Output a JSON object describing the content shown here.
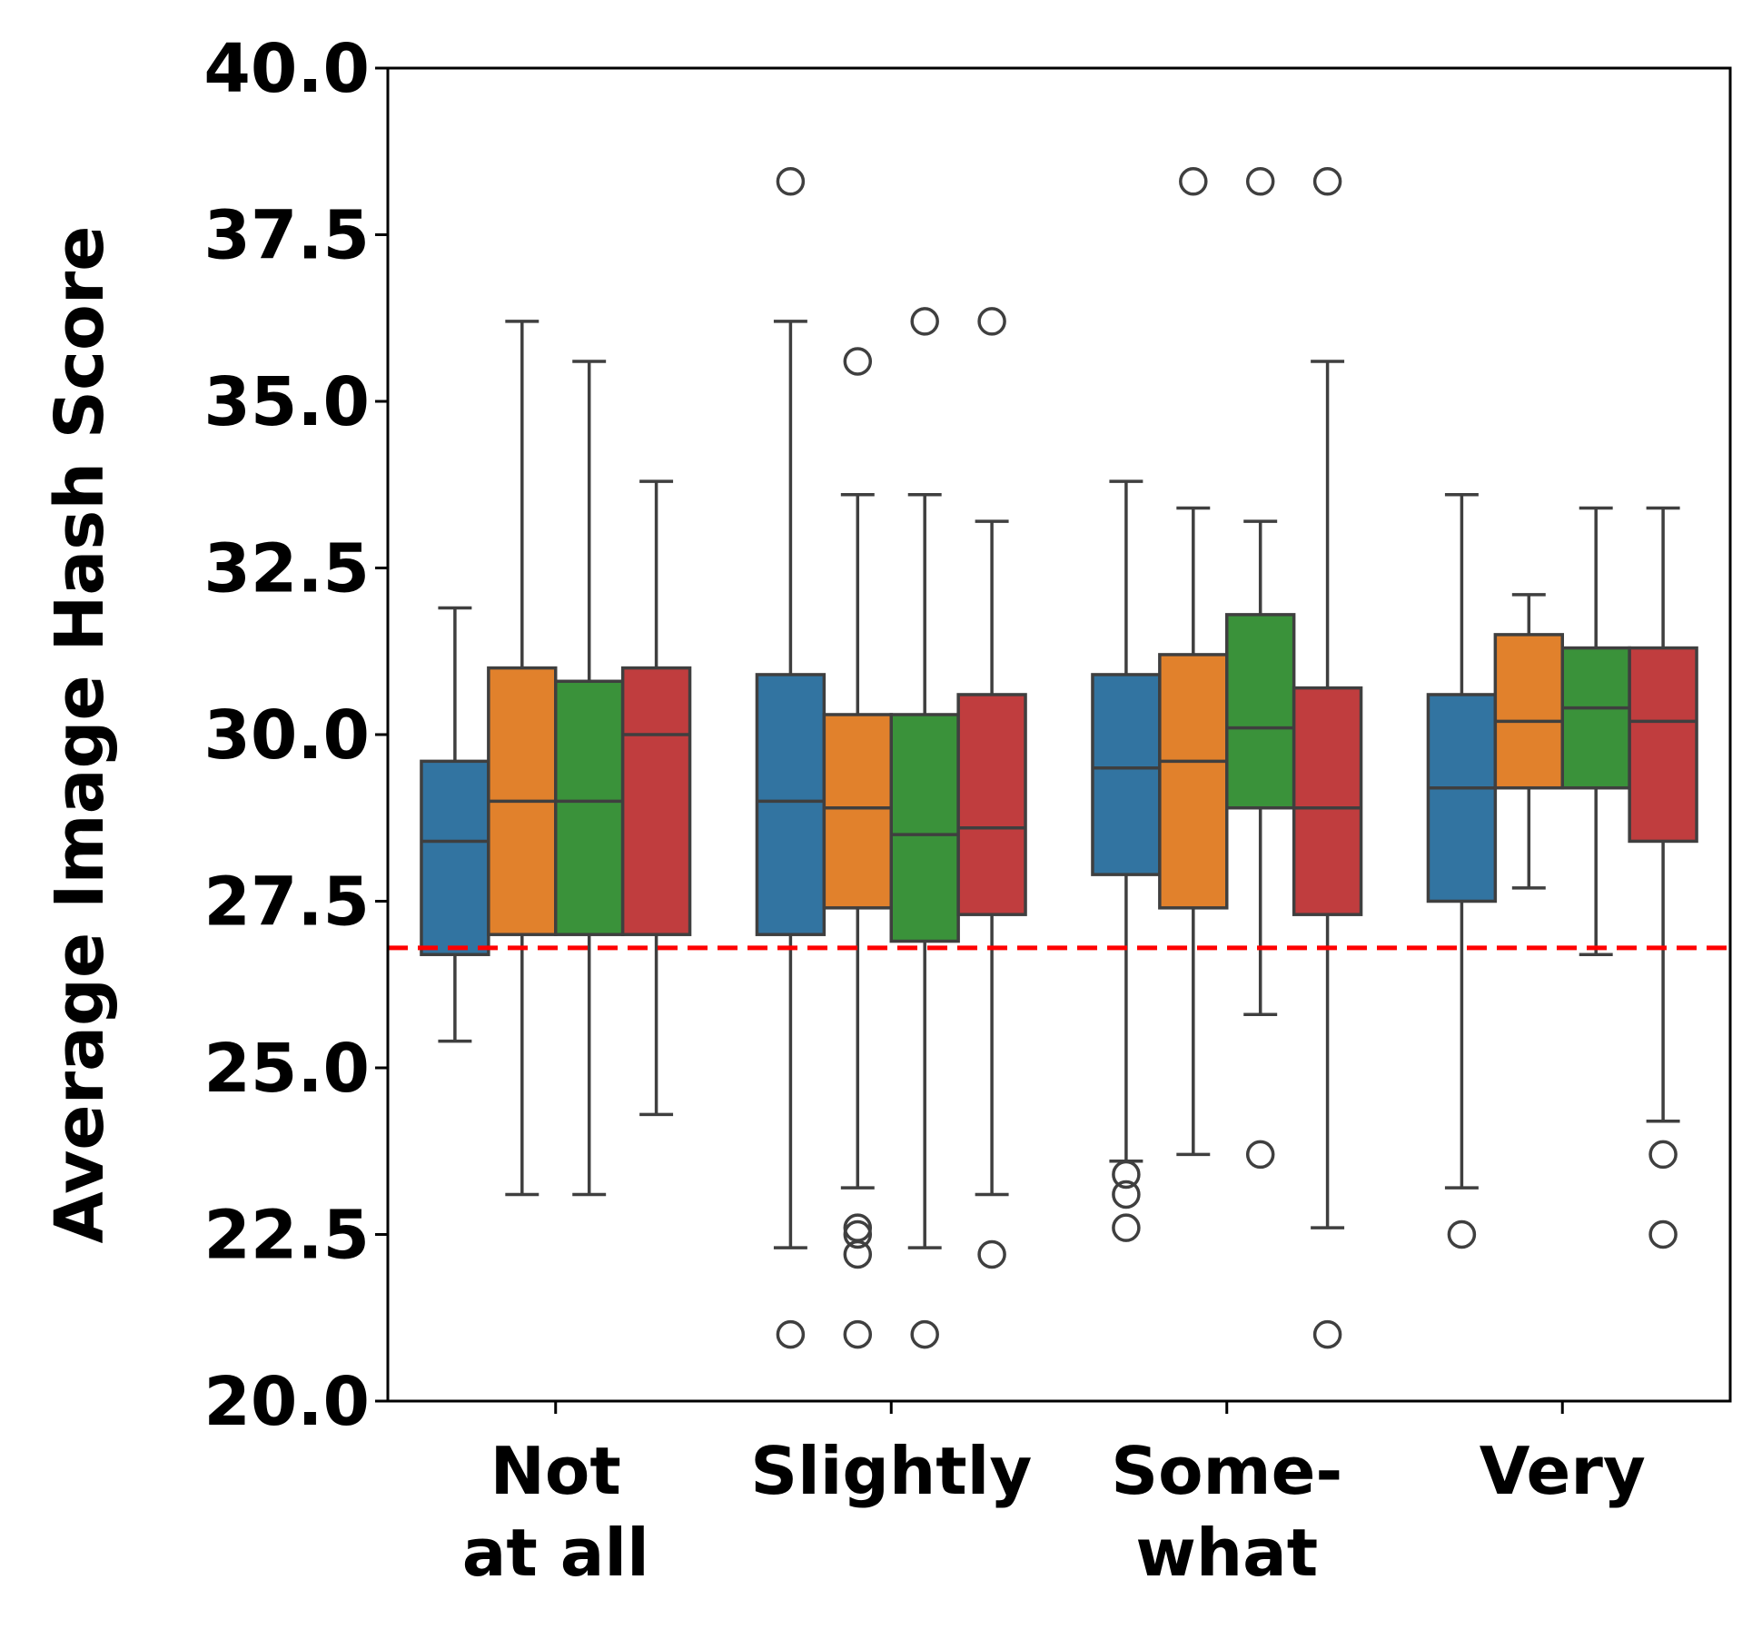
{
  "chart_data": {
    "type": "box",
    "title": "",
    "xlabel": "",
    "ylabel": "Average Image Hash Score",
    "ylim": [
      20.0,
      40.0
    ],
    "yticks": [
      "20.0",
      "22.5",
      "25.0",
      "27.5",
      "30.0",
      "32.5",
      "35.0",
      "37.5",
      "40.0"
    ],
    "categories": [
      [
        "Not",
        "at all"
      ],
      [
        "Slightly"
      ],
      [
        "Some-",
        "what"
      ],
      [
        "Very"
      ]
    ],
    "series_colors": [
      "#3274a1",
      "#e1812c",
      "#3a923a",
      "#c03d3e"
    ],
    "reference_line": {
      "value": 26.8,
      "color": "#ff0000",
      "style": "dashed"
    },
    "groups": [
      [
        {
          "q1": 26.7,
          "median": 28.4,
          "q3": 29.6,
          "whisker_low": 25.4,
          "whisker_high": 31.9,
          "outliers": []
        },
        {
          "q1": 27.0,
          "median": 29.0,
          "q3": 31.0,
          "whisker_low": 23.1,
          "whisker_high": 36.2,
          "outliers": []
        },
        {
          "q1": 27.0,
          "median": 29.0,
          "q3": 30.8,
          "whisker_low": 23.1,
          "whisker_high": 35.6,
          "outliers": []
        },
        {
          "q1": 27.0,
          "median": 30.0,
          "q3": 31.0,
          "whisker_low": 24.3,
          "whisker_high": 33.8,
          "outliers": []
        }
      ],
      [
        {
          "q1": 27.0,
          "median": 29.0,
          "q3": 30.9,
          "whisker_low": 22.3,
          "whisker_high": 36.2,
          "outliers": [
            38.3,
            21.0
          ]
        },
        {
          "q1": 27.4,
          "median": 28.9,
          "q3": 30.3,
          "whisker_low": 23.2,
          "whisker_high": 33.6,
          "outliers": [
            35.6,
            22.6,
            22.5,
            22.2,
            21.0
          ]
        },
        {
          "q1": 26.9,
          "median": 28.5,
          "q3": 30.3,
          "whisker_low": 22.3,
          "whisker_high": 33.6,
          "outliers": [
            36.2,
            21.0
          ]
        },
        {
          "q1": 27.3,
          "median": 28.6,
          "q3": 30.6,
          "whisker_low": 23.1,
          "whisker_high": 33.2,
          "outliers": [
            36.2,
            22.2
          ]
        }
      ],
      [
        {
          "q1": 27.9,
          "median": 29.5,
          "q3": 30.9,
          "whisker_low": 23.6,
          "whisker_high": 33.8,
          "outliers": [
            23.4,
            23.1,
            22.6
          ]
        },
        {
          "q1": 27.4,
          "median": 29.6,
          "q3": 31.2,
          "whisker_low": 23.7,
          "whisker_high": 33.4,
          "outliers": [
            38.3
          ]
        },
        {
          "q1": 28.9,
          "median": 30.1,
          "q3": 31.8,
          "whisker_low": 25.8,
          "whisker_high": 33.2,
          "outliers": [
            38.3,
            23.7
          ]
        },
        {
          "q1": 27.3,
          "median": 28.9,
          "q3": 30.7,
          "whisker_low": 22.6,
          "whisker_high": 35.6,
          "outliers": [
            38.3,
            21.0
          ]
        }
      ],
      [
        {
          "q1": 27.5,
          "median": 29.2,
          "q3": 30.6,
          "whisker_low": 23.2,
          "whisker_high": 33.6,
          "outliers": [
            22.5
          ]
        },
        {
          "q1": 29.2,
          "median": 30.2,
          "q3": 31.5,
          "whisker_low": 27.7,
          "whisker_high": 32.1,
          "outliers": []
        },
        {
          "q1": 29.2,
          "median": 30.4,
          "q3": 31.3,
          "whisker_low": 26.7,
          "whisker_high": 33.4,
          "outliers": []
        },
        {
          "q1": 28.4,
          "median": 30.2,
          "q3": 31.3,
          "whisker_low": 24.2,
          "whisker_high": 33.4,
          "outliers": [
            23.7,
            22.5
          ]
        }
      ]
    ]
  }
}
